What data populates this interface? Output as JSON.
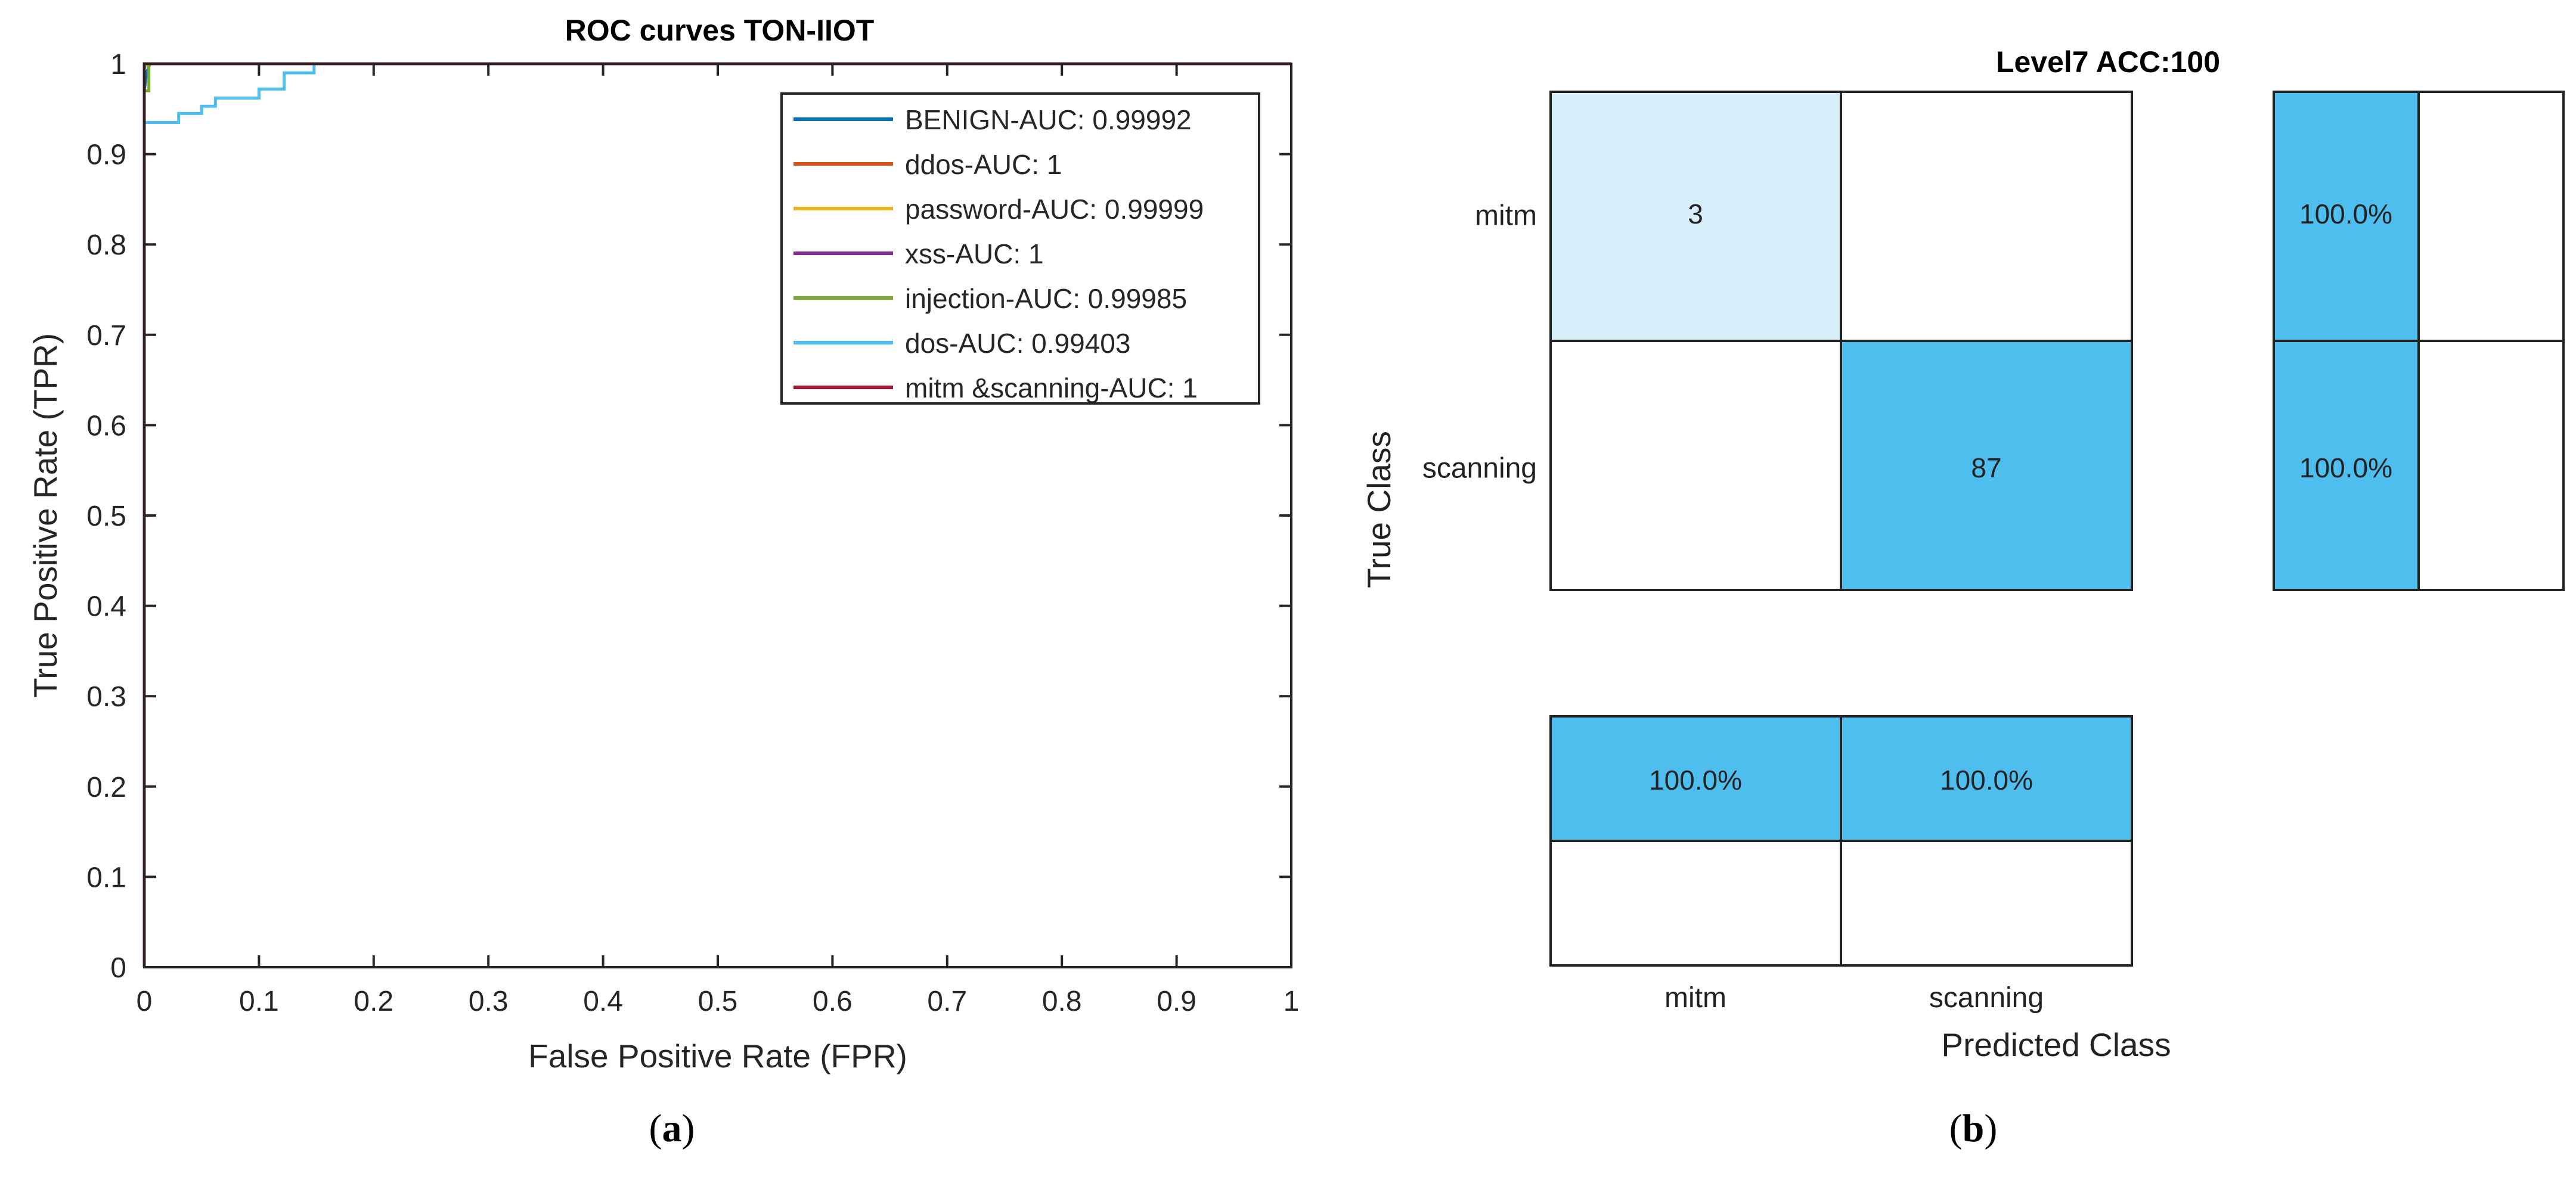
{
  "chart_data": [
    {
      "type": "line",
      "title": "ROC curves TON-IIOT",
      "xlabel": "False Positive Rate (FPR)",
      "ylabel": "True Positive Rate (TPR)",
      "xlim": [
        0,
        1
      ],
      "ylim": [
        0,
        1
      ],
      "xticks": [
        "0",
        "0.1",
        "0.2",
        "0.3",
        "0.4",
        "0.5",
        "0.6",
        "0.7",
        "0.8",
        "0.9",
        "1"
      ],
      "yticks": [
        "0",
        "0.1",
        "0.2",
        "0.3",
        "0.4",
        "0.5",
        "0.6",
        "0.7",
        "0.8",
        "0.9",
        "1"
      ],
      "grid": false,
      "legend_position": "top-right",
      "series": [
        {
          "name": "BENIGN-AUC: 0.99992",
          "color": "#0072BD",
          "points": [
            [
              0,
              0
            ],
            [
              0,
              0.97
            ],
            [
              0.002,
              0.99
            ],
            [
              0.005,
              1
            ],
            [
              1,
              1
            ]
          ]
        },
        {
          "name": "ddos-AUC: 1",
          "color": "#D95319",
          "points": [
            [
              0,
              0
            ],
            [
              0,
              1
            ],
            [
              1,
              1
            ]
          ]
        },
        {
          "name": "password-AUC: 0.99999",
          "color": "#EDB120",
          "points": [
            [
              0,
              0
            ],
            [
              0,
              0.995
            ],
            [
              0.002,
              1
            ],
            [
              1,
              1
            ]
          ]
        },
        {
          "name": "xss-AUC: 1",
          "color": "#7E2F8E",
          "points": [
            [
              0,
              0
            ],
            [
              0,
              1
            ],
            [
              1,
              1
            ]
          ]
        },
        {
          "name": "injection-AUC: 0.99985",
          "color": "#77AC30",
          "points": [
            [
              0,
              0
            ],
            [
              0,
              0.97
            ],
            [
              0.004,
              0.97
            ],
            [
              0.004,
              1
            ],
            [
              1,
              1
            ]
          ]
        },
        {
          "name": "dos-AUC: 0.99403",
          "color": "#4DBEEE",
          "points": [
            [
              0,
              0
            ],
            [
              0,
              0.935
            ],
            [
              0.03,
              0.935
            ],
            [
              0.03,
              0.945
            ],
            [
              0.05,
              0.945
            ],
            [
              0.05,
              0.953
            ],
            [
              0.062,
              0.953
            ],
            [
              0.062,
              0.962
            ],
            [
              0.1,
              0.962
            ],
            [
              0.1,
              0.972
            ],
            [
              0.122,
              0.972
            ],
            [
              0.122,
              0.99
            ],
            [
              0.148,
              0.99
            ],
            [
              0.148,
              1
            ],
            [
              1,
              1
            ]
          ]
        },
        {
          "name": "mitm &scanning-AUC: 1",
          "color": "#A2142F",
          "points": [
            [
              0,
              0
            ],
            [
              0,
              1
            ],
            [
              1,
              1
            ]
          ]
        }
      ]
    },
    {
      "type": "heatmap",
      "title": "Level7 ACC:100",
      "xlabel": "Predicted Class",
      "ylabel": "True Class",
      "classes": [
        "mitm",
        "scanning"
      ],
      "matrix": [
        [
          3,
          0
        ],
        [
          0,
          87
        ]
      ],
      "row_summary": [
        "100.0%",
        "100.0%"
      ],
      "column_summary": [
        "100.0%",
        "100.0%"
      ],
      "colors": {
        "light": "#D6EEF9",
        "strong": "#4DBEEE",
        "empty": "#FFFFFF"
      }
    }
  ],
  "captions": {
    "a_letter": "a",
    "b_letter": "b"
  }
}
